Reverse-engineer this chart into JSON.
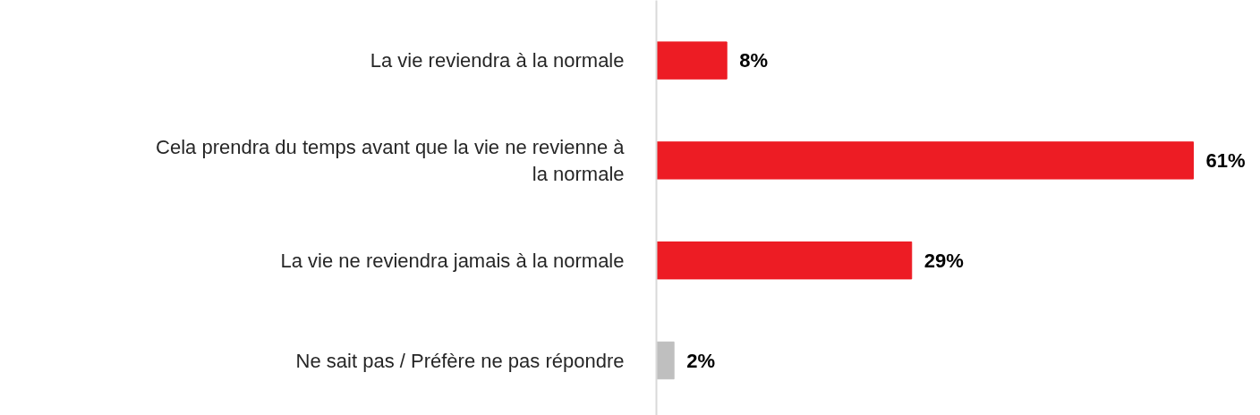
{
  "chart_data": {
    "type": "bar",
    "orientation": "horizontal",
    "categories": [
      "La vie reviendra à la normale",
      "Cela prendra du temps avant que la vie ne revienne à la normale",
      "La vie ne reviendra jamais à la normale",
      "Ne sait pas / Préfère ne pas répondre"
    ],
    "values": [
      8,
      61,
      29,
      2
    ],
    "colors": [
      "#ed1c24",
      "#ed1c24",
      "#ed1c24",
      "#bfbfbf"
    ],
    "value_labels": [
      "8%",
      "61%",
      "29%",
      "2%"
    ],
    "tick_labels": "y"
  }
}
